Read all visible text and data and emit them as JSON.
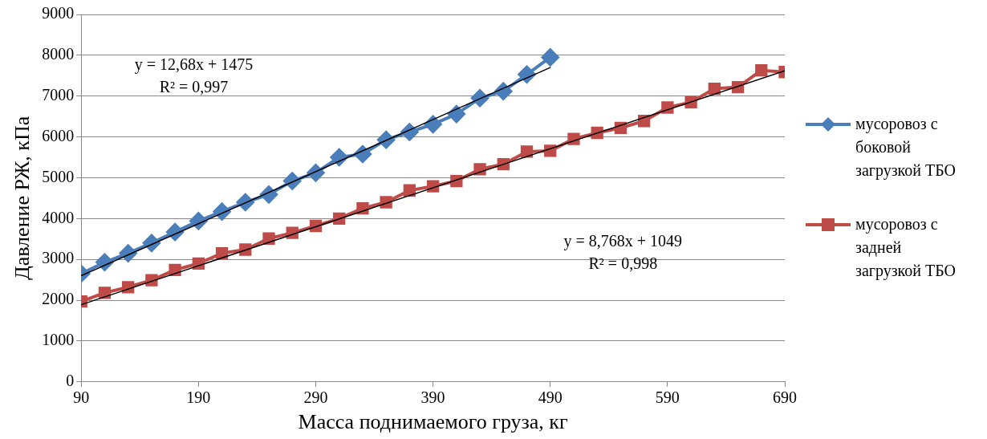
{
  "chart_data": {
    "type": "line",
    "xlabel": "Масса поднимаемого груза, кг",
    "ylabel": "Давление РЖ, кПа",
    "xlim": [
      90,
      690
    ],
    "xticks": [
      90,
      190,
      290,
      390,
      490,
      590,
      690
    ],
    "ylim": [
      0,
      9000
    ],
    "yticks": [
      0,
      1000,
      2000,
      3000,
      4000,
      5000,
      6000,
      7000,
      8000,
      9000
    ],
    "grid": "y",
    "legend": "right",
    "line_style": "solid",
    "series": [
      {
        "name": "мусоровоз с боковой загрузкой ТБО",
        "color": "#4a7ebb",
        "marker": "diamond",
        "x": [
          90,
          110,
          130,
          150,
          170,
          190,
          210,
          230,
          250,
          270,
          290,
          310,
          330,
          350,
          370,
          390,
          410,
          430,
          450,
          470,
          490
        ],
        "values": [
          2650,
          2930,
          3150,
          3400,
          3670,
          3940,
          4170,
          4400,
          4590,
          4920,
          5120,
          5500,
          5580,
          5930,
          6120,
          6310,
          6560,
          6950,
          7120,
          7530,
          7950
        ]
      },
      {
        "name": "мусоровоз с задней загрузкой ТБО",
        "color": "#be4b48",
        "marker": "square",
        "x": [
          90,
          110,
          130,
          150,
          170,
          190,
          210,
          230,
          250,
          270,
          290,
          310,
          330,
          350,
          370,
          390,
          410,
          430,
          450,
          470,
          490,
          510,
          530,
          550,
          570,
          590,
          610,
          630,
          650,
          670,
          690
        ],
        "values": [
          1970,
          2180,
          2320,
          2490,
          2740,
          2900,
          3150,
          3240,
          3510,
          3650,
          3820,
          4000,
          4250,
          4400,
          4690,
          4790,
          4920,
          5210,
          5330,
          5640,
          5660,
          5950,
          6100,
          6220,
          6390,
          6720,
          6850,
          7180,
          7220,
          7630,
          7590
        ]
      },
      {
        "type": "line",
        "color": "#000000",
        "marker": "none",
        "x": [
          90,
          490
        ],
        "values": [
          2600,
          7700
        ]
      },
      {
        "type": "line",
        "color": "#000000",
        "marker": "none",
        "x": [
          90,
          690
        ],
        "values": [
          1890,
          7620
        ]
      }
    ],
    "annotations": [
      "y = 12,68x + 1475\nR² = 0,997",
      "y = 8,768x + 1049\nR² = 0,998"
    ]
  }
}
